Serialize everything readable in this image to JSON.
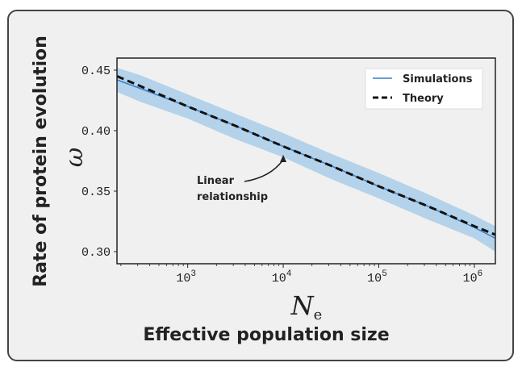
{
  "chart_data": {
    "type": "line",
    "xlabel_symbol": "N",
    "xlabel_symbol_sub": "e",
    "xlabel": "Effective population size",
    "ylabel_symbol": "ω",
    "ylabel": "Rate of protein evolution",
    "xscale": "log",
    "xlim": [
      182,
      1660000
    ],
    "ylim": [
      0.29,
      0.46
    ],
    "grid": false,
    "x_ticks": [
      {
        "value": 1000,
        "label": "10",
        "exp": "3"
      },
      {
        "value": 10000,
        "label": "10",
        "exp": "4"
      },
      {
        "value": 100000,
        "label": "10",
        "exp": "5"
      },
      {
        "value": 1000000,
        "label": "10",
        "exp": "6"
      }
    ],
    "y_ticks": [
      {
        "value": 0.3,
        "label": "0.30"
      },
      {
        "value": 0.35,
        "label": "0.35"
      },
      {
        "value": 0.4,
        "label": "0.40"
      },
      {
        "value": 0.45,
        "label": "0.45"
      }
    ],
    "x": [
      182,
      316,
      1000,
      3162,
      10000,
      31623,
      100000,
      316228,
      1000000,
      1660000
    ],
    "series": [
      {
        "name": "Simulations",
        "color": "#3a7fc9",
        "style": "solid",
        "values": [
          0.442,
          0.435,
          0.42,
          0.404,
          0.387,
          0.371,
          0.354,
          0.338,
          0.32,
          0.311
        ],
        "band_lower": [
          0.432,
          0.424,
          0.41,
          0.393,
          0.378,
          0.36,
          0.344,
          0.327,
          0.311,
          0.3
        ],
        "band_upper": [
          0.452,
          0.446,
          0.43,
          0.414,
          0.398,
          0.381,
          0.365,
          0.348,
          0.33,
          0.321
        ],
        "band_color": "#b4d3ea"
      },
      {
        "name": "Theory",
        "color": "#111111",
        "style": "dashed",
        "values": [
          0.445,
          0.437,
          0.42,
          0.404,
          0.387,
          0.371,
          0.354,
          0.338,
          0.321,
          0.314
        ]
      }
    ],
    "legend": "top-right",
    "annotation": {
      "lines": [
        "Linear",
        "relationship"
      ],
      "target_x": 10000,
      "target_y": 0.384
    }
  }
}
